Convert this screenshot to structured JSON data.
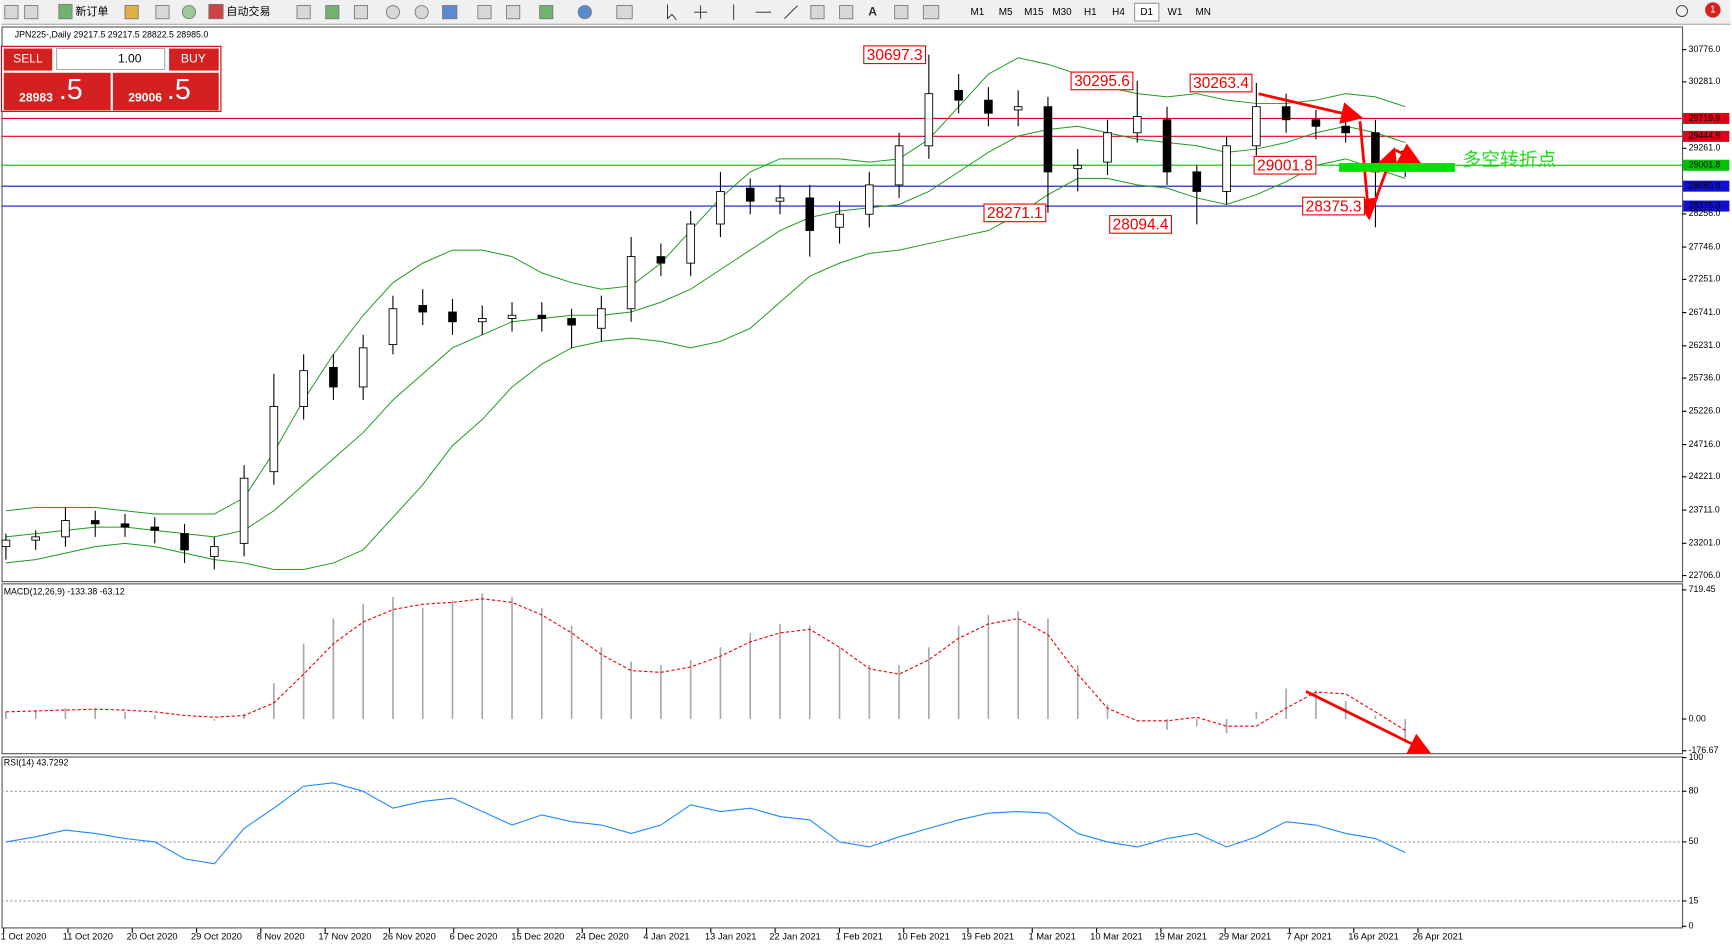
{
  "toolbar": {
    "new_order": "新订单",
    "auto_trading": "自动交易",
    "timeframes": [
      "M1",
      "M5",
      "M15",
      "M30",
      "H1",
      "H4",
      "D1",
      "W1",
      "MN"
    ],
    "notifications": "1"
  },
  "trade_panel": {
    "sell": "SELL",
    "buy": "BUY",
    "lot": "1.00",
    "bid_small": "28983",
    "bid_big": ".5",
    "ask_small": "29006",
    "ask_big": ".5"
  },
  "chart_data": [
    {
      "type": "candlestick",
      "title": "JPN225-,Daily  29217.5 29217.5 28822.5 28985.0",
      "x_labels": [
        "1 Oct 2020",
        "11 Oct 2020",
        "20 Oct 2020",
        "29 Oct 2020",
        "8 Nov 2020",
        "17 Nov 2020",
        "26 Nov 2020",
        "6 Dec 2020",
        "15 Dec 2020",
        "24 Dec 2020",
        "4 Jan 2021",
        "13 Jan 2021",
        "22 Jan 2021",
        "1 Feb 2021",
        "10 Feb 2021",
        "19 Feb 2021",
        "1 Mar 2021",
        "10 Mar 2021",
        "19 Mar 2021",
        "29 Mar 2021",
        "7 Apr 2021",
        "16 Apr 2021",
        "26 Apr 2021"
      ],
      "open": [
        23150,
        23250,
        23300,
        23550,
        23500,
        23450,
        23350,
        23000,
        23200,
        24300,
        25300,
        25900,
        25600,
        26250,
        26850,
        26750,
        26600,
        26650,
        26700,
        26650,
        26500,
        26800,
        27600,
        27500,
        28100,
        28650,
        28450,
        28500,
        28050,
        28250,
        28700,
        29300,
        30150,
        30000,
        29850,
        29900,
        28950,
        29050,
        29500,
        29700,
        28900,
        28600,
        29300,
        29900,
        29700,
        29600,
        29500,
        29217.5
      ],
      "high": [
        23350,
        23400,
        23750,
        23700,
        23650,
        23600,
        23500,
        23300,
        24400,
        25800,
        26100,
        26100,
        26400,
        27000,
        27100,
        26950,
        26850,
        26900,
        26900,
        26800,
        27000,
        27900,
        27800,
        28300,
        28900,
        28800,
        28700,
        28700,
        28450,
        28900,
        29500,
        30697.3,
        30400,
        30200,
        30150,
        30050,
        29250,
        29700,
        30295.6,
        29900,
        29000,
        29450,
        30263.4,
        30100,
        29850,
        29750,
        29700,
        29217.5
      ],
      "low": [
        22950,
        23100,
        23150,
        23300,
        23300,
        23200,
        22900,
        22800,
        23000,
        24100,
        25100,
        25400,
        25400,
        26100,
        26550,
        26400,
        26400,
        26450,
        26450,
        26200,
        26300,
        26600,
        27300,
        27300,
        27900,
        28250,
        28250,
        27600,
        27800,
        28050,
        28500,
        29100,
        29800,
        29600,
        29600,
        28271.1,
        28600,
        28850,
        29350,
        28700,
        28094.4,
        28400,
        29150,
        29500,
        29400,
        29350,
        28050,
        28822.5
      ],
      "close": [
        23250,
        23300,
        23550,
        23500,
        23450,
        23400,
        23100,
        23150,
        24200,
        25300,
        25850,
        25600,
        26200,
        26800,
        26750,
        26600,
        26650,
        26700,
        26650,
        26550,
        26800,
        27600,
        27500,
        28100,
        28600,
        28450,
        28500,
        28000,
        28250,
        28700,
        29300,
        30100,
        30000,
        29800,
        29900,
        28900,
        29000,
        29500,
        29750,
        28900,
        28600,
        29300,
        29900,
        29700,
        29600,
        29500,
        28900,
        28985.0
      ],
      "bands": {
        "color": "#1f9a1f",
        "upper": [
          23700,
          23750,
          23750,
          23750,
          23700,
          23650,
          23650,
          23650,
          23900,
          24600,
          25400,
          26100,
          26700,
          27200,
          27500,
          27700,
          27700,
          27600,
          27350,
          27200,
          27100,
          27150,
          27500,
          28000,
          28500,
          28900,
          29100,
          29100,
          29100,
          29050,
          29100,
          29400,
          29900,
          30400,
          30650,
          30550,
          30400,
          30200,
          30100,
          30050,
          30100,
          30000,
          29950,
          29950,
          30000,
          30100,
          30050,
          29900
        ],
        "middle": [
          23300,
          23350,
          23400,
          23450,
          23450,
          23400,
          23350,
          23300,
          23400,
          23700,
          24100,
          24500,
          24900,
          25400,
          25800,
          26200,
          26400,
          26600,
          26650,
          26700,
          26700,
          26750,
          26900,
          27100,
          27400,
          27700,
          28000,
          28200,
          28300,
          28350,
          28400,
          28600,
          28900,
          29200,
          29450,
          29550,
          29600,
          29500,
          29400,
          29350,
          29300,
          29200,
          29250,
          29350,
          29500,
          29600,
          29500,
          29350
        ],
        "lower": [
          22900,
          22950,
          23050,
          23150,
          23200,
          23150,
          23050,
          22950,
          22900,
          22800,
          22800,
          22900,
          23100,
          23600,
          24100,
          24700,
          25100,
          25600,
          25950,
          26200,
          26300,
          26350,
          26300,
          26200,
          26300,
          26500,
          26900,
          27300,
          27500,
          27650,
          27700,
          27800,
          27900,
          28000,
          28250,
          28550,
          28800,
          28800,
          28700,
          28650,
          28500,
          28400,
          28550,
          28750,
          29000,
          29100,
          28950,
          28800
        ]
      },
      "ylim": [
        22621,
        31131
      ],
      "yticks": [
        {
          "value": 30776,
          "label": "30776.0"
        },
        {
          "value": 30281,
          "label": "30281.0"
        },
        {
          "value": 29261,
          "label": "29261.0"
        },
        {
          "value": 28256,
          "label": "28256.0"
        },
        {
          "value": 27746,
          "label": "27746.0"
        },
        {
          "value": 27251,
          "label": "27251.0"
        },
        {
          "value": 26741,
          "label": "26741.0"
        },
        {
          "value": 26231,
          "label": "26231.0"
        },
        {
          "value": 25736,
          "label": "25736.0"
        },
        {
          "value": 25226,
          "label": "25226.0"
        },
        {
          "value": 24716,
          "label": "24716.0"
        },
        {
          "value": 24221,
          "label": "24221.0"
        },
        {
          "value": 23711,
          "label": "23711.0"
        },
        {
          "value": 23201,
          "label": "23201.0"
        },
        {
          "value": 22706,
          "label": "22706.0"
        }
      ],
      "levels": [
        {
          "value": 29719.9,
          "color": "#e0001b"
        },
        {
          "value": 29444.9,
          "color": "#e0001b"
        },
        {
          "value": 29001.8,
          "color": "#00c000"
        },
        {
          "value": 28680.9,
          "color": "#1010d0"
        },
        {
          "value": 28375.3,
          "color": "#1010d0"
        }
      ],
      "annotations": [
        30697.3,
        30295.6,
        30263.4,
        29001.8,
        28271.1,
        28094.4,
        28375.3
      ],
      "note": "多空转折点"
    },
    {
      "type": "macd",
      "title": "MACD(12,26,9) -133.38 -63.12",
      "histogram": [
        40,
        50,
        60,
        60,
        40,
        20,
        0,
        -10,
        30,
        200,
        420,
        560,
        640,
        680,
        620,
        660,
        700,
        680,
        620,
        520,
        400,
        320,
        300,
        330,
        400,
        480,
        530,
        520,
        400,
        300,
        300,
        400,
        520,
        580,
        600,
        560,
        300,
        80,
        0,
        -60,
        -40,
        -80,
        40,
        170,
        160,
        100,
        20,
        -133.38
      ],
      "signal": [
        40,
        45,
        50,
        55,
        50,
        40,
        20,
        10,
        20,
        90,
        250,
        420,
        540,
        610,
        640,
        650,
        670,
        650,
        580,
        480,
        360,
        270,
        260,
        290,
        350,
        430,
        480,
        500,
        400,
        280,
        250,
        330,
        450,
        530,
        560,
        470,
        250,
        60,
        -10,
        -10,
        10,
        -40,
        -40,
        60,
        150,
        140,
        40,
        -63.12
      ],
      "ylim": [
        -190,
        750
      ],
      "yticks": [
        719.45,
        {
          "value": 0,
          "label": "0.00"
        },
        -176.67
      ]
    },
    {
      "type": "line",
      "title": "RSI(14) 43.7292",
      "color": "#1e88ff",
      "values": [
        50,
        53,
        57,
        55,
        52,
        50,
        40,
        37,
        58,
        70,
        83,
        85,
        80,
        70,
        74,
        76,
        68,
        60,
        66,
        62,
        60,
        55,
        60,
        72,
        68,
        70,
        65,
        63,
        50,
        47,
        53,
        58,
        63,
        67,
        68,
        67,
        55,
        50,
        47,
        52,
        55,
        47,
        53,
        62,
        60,
        55,
        52,
        43.7292
      ],
      "ylim": [
        0,
        100
      ],
      "yticks": [
        100,
        80,
        50,
        15,
        0
      ],
      "levels": [
        80,
        50,
        15
      ]
    }
  ]
}
